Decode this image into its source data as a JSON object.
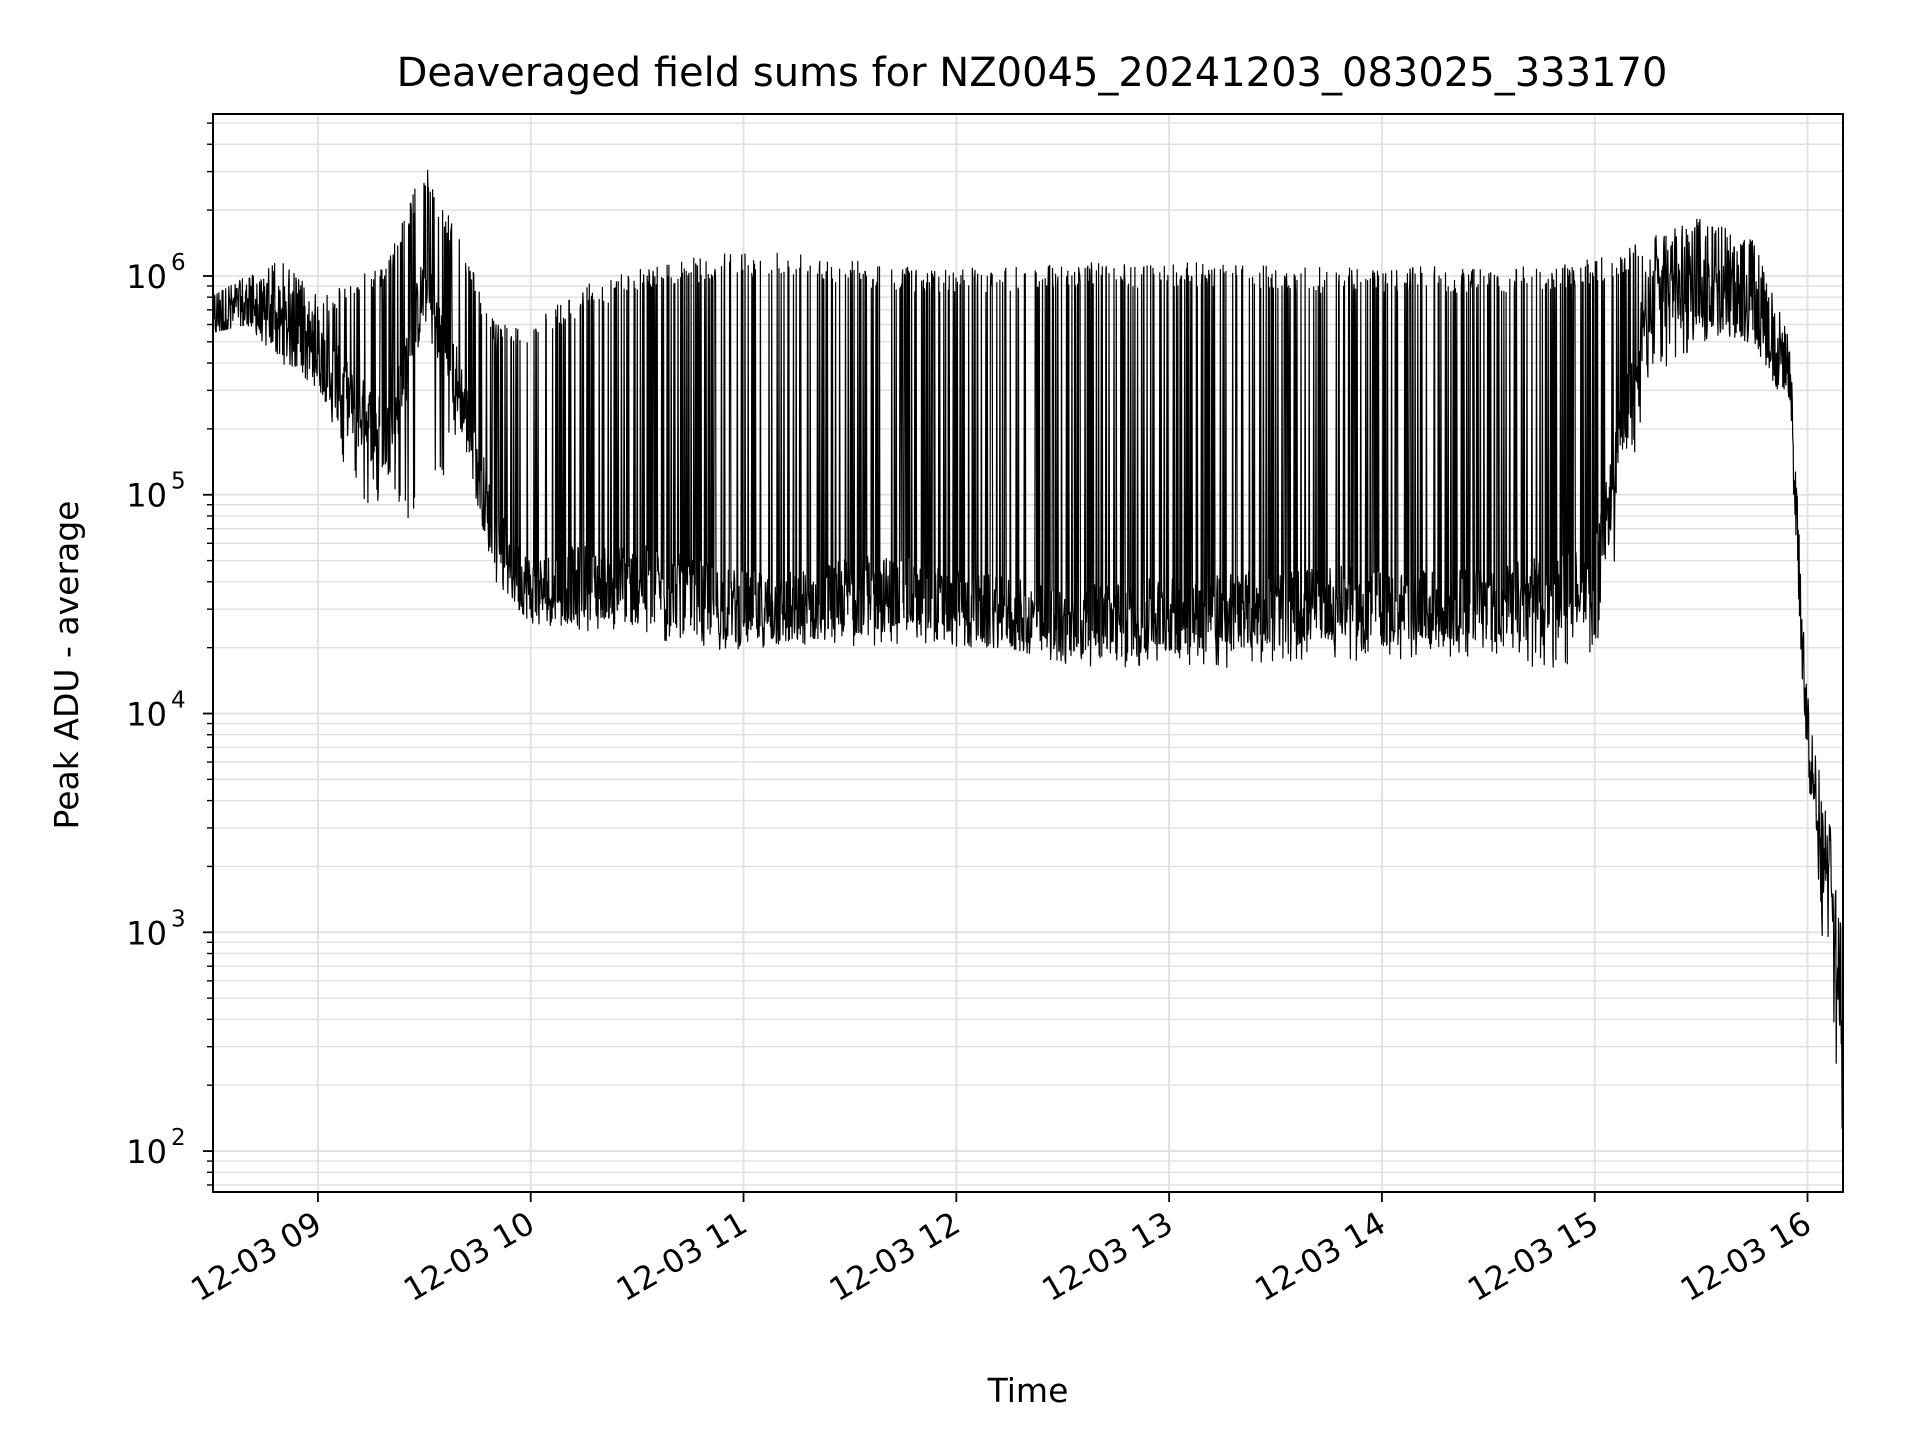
{
  "chart_data": {
    "type": "line",
    "title": "Deaveraged field sums for NZ0045_20241203_083025_333170",
    "xlabel": "Time",
    "ylabel": "Peak ADU - average",
    "x_scale": "time",
    "y_scale": "log",
    "xlim": [
      "2024-12-03 08:30:25",
      "2024-12-03 16:10:00"
    ],
    "ylim": [
      65,
      5500000
    ],
    "grid": true,
    "line_color": "#000000",
    "grid_color": "#e0e0e0",
    "x_ticks": [
      {
        "value": "2024-12-03 09:00",
        "label": "12-03 09"
      },
      {
        "value": "2024-12-03 10:00",
        "label": "12-03 10"
      },
      {
        "value": "2024-12-03 11:00",
        "label": "12-03 11"
      },
      {
        "value": "2024-12-03 12:00",
        "label": "12-03 12"
      },
      {
        "value": "2024-12-03 13:00",
        "label": "12-03 13"
      },
      {
        "value": "2024-12-03 14:00",
        "label": "12-03 14"
      },
      {
        "value": "2024-12-03 15:00",
        "label": "12-03 15"
      },
      {
        "value": "2024-12-03 16:00",
        "label": "12-03 16"
      }
    ],
    "y_ticks": [
      {
        "value": 100,
        "base": "10",
        "exp": "2"
      },
      {
        "value": 1000,
        "base": "10",
        "exp": "3"
      },
      {
        "value": 10000,
        "base": "10",
        "exp": "4"
      },
      {
        "value": 100000,
        "base": "10",
        "exp": "5"
      },
      {
        "value": 1000000,
        "base": "10",
        "exp": "6"
      }
    ],
    "series": [
      {
        "envelope": {
          "x": [
            "08:30",
            "08:40",
            "08:50",
            "09:00",
            "09:10",
            "09:20",
            "09:30",
            "09:40",
            "09:50",
            "10:00",
            "10:15",
            "10:30",
            "10:45",
            "11:00",
            "11:15",
            "11:30",
            "11:45",
            "12:00",
            "12:15",
            "12:30",
            "12:45",
            "13:00",
            "13:15",
            "13:30",
            "13:45",
            "14:00",
            "14:15",
            "14:30",
            "14:45",
            "15:00",
            "15:15",
            "15:30",
            "15:45",
            "15:55",
            "16:00",
            "16:02",
            "16:04",
            "16:06",
            "16:08",
            "16:10"
          ],
          "high": [
            800000,
            1000000,
            1200000,
            800000,
            1000000,
            1200000,
            3300000,
            1500000,
            600000,
            600000,
            900000,
            1100000,
            1200000,
            1300000,
            1300000,
            1200000,
            1100000,
            1100000,
            1100000,
            1150000,
            1150000,
            1150000,
            1150000,
            1100000,
            1100000,
            1100000,
            1100000,
            1100000,
            1100000,
            1200000,
            1500000,
            1900000,
            1500000,
            500000,
            12000,
            10000,
            4000,
            3500,
            1800,
            1000
          ],
          "low": [
            550000,
            600000,
            400000,
            300000,
            100000,
            80000,
            70000,
            200000,
            40000,
            26000,
            24000,
            22000,
            20000,
            19000,
            19000,
            20000,
            20000,
            20000,
            20000,
            17000,
            16000,
            17000,
            16000,
            17000,
            18000,
            17000,
            18000,
            18000,
            16000,
            17000,
            300000,
            500000,
            500000,
            200000,
            4500,
            4000,
            800,
            900,
            200,
            100
          ],
          "typical": [
            650000,
            700000,
            600000,
            450000,
            250000,
            180000,
            900000,
            300000,
            60000,
            35000,
            40000,
            40000,
            35000,
            30000,
            30000,
            35000,
            35000,
            30000,
            28000,
            25000,
            27000,
            28000,
            30000,
            30000,
            32000,
            30000,
            30000,
            32000,
            35000,
            40000,
            800000,
            900000,
            700000,
            400000,
            6000,
            5000,
            1500,
            2500,
            900,
            300
          ]
        }
      }
    ]
  }
}
